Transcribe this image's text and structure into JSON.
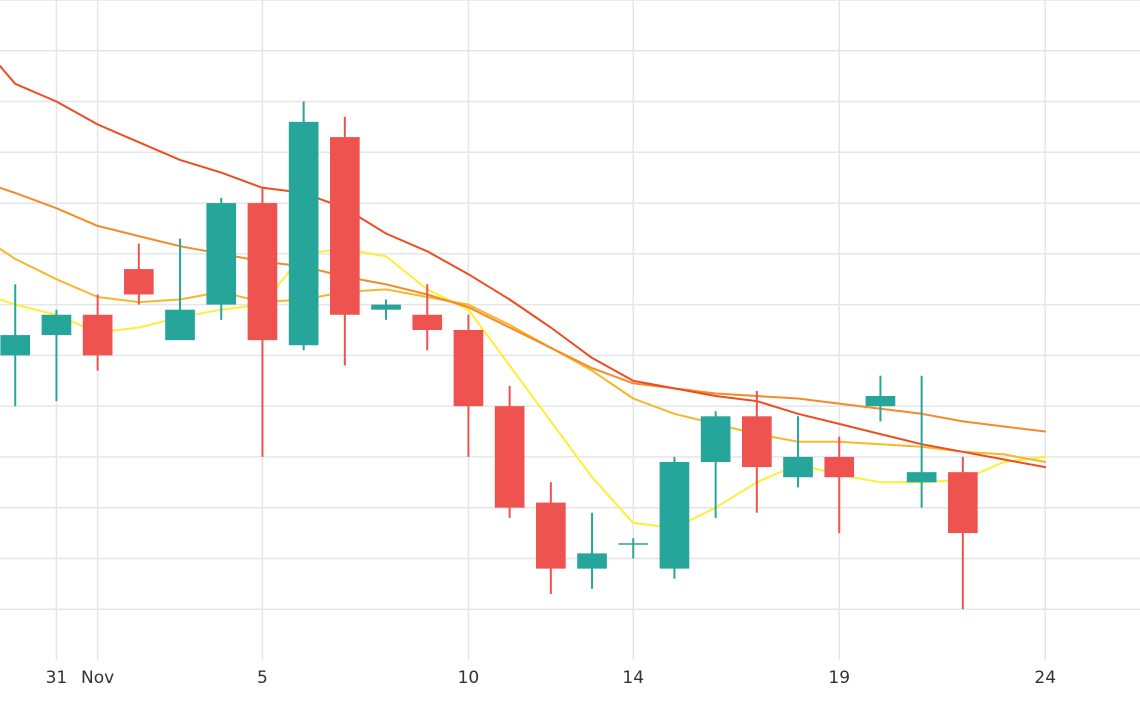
{
  "chart_data": {
    "type": "candlestick",
    "title": "",
    "xlabel": "",
    "ylabel": "",
    "x_axis": {
      "tick_labels": [
        {
          "day": 0,
          "label": "31"
        },
        {
          "day": 1,
          "label": "Nov"
        },
        {
          "day": 5,
          "label": "5"
        },
        {
          "day": 10,
          "label": "10"
        },
        {
          "day": 14,
          "label": "14"
        },
        {
          "day": 19,
          "label": "19"
        },
        {
          "day": 24,
          "label": "24"
        }
      ],
      "gridline_days": [
        0,
        1,
        5,
        10,
        14,
        19,
        24
      ],
      "visible_day_range": [
        -1.37,
        26.3
      ]
    },
    "y_axis": {
      "visible_range": [
        21,
        34
      ],
      "gridlines": [
        22,
        23,
        24,
        25,
        26,
        27,
        28,
        29,
        30,
        31,
        32,
        33,
        34
      ],
      "tick_labels_shown": false
    },
    "grid": true,
    "colors": {
      "up": "#26a69a",
      "down": "#ef5350",
      "grid": "#e6e6e6",
      "ma": [
        "#ffee33",
        "#f6b82a",
        "#f68a27",
        "#ec4e20"
      ]
    },
    "candles": [
      {
        "day": -1,
        "open": 27.0,
        "high": 28.4,
        "low": 26.0,
        "close": 27.4
      },
      {
        "day": 0,
        "open": 27.4,
        "high": 27.9,
        "low": 26.1,
        "close": 27.8
      },
      {
        "day": 1,
        "open": 27.8,
        "high": 28.2,
        "low": 26.7,
        "close": 27.0
      },
      {
        "day": 2,
        "open": 28.7,
        "high": 29.2,
        "low": 28.0,
        "close": 28.2
      },
      {
        "day": 3,
        "open": 27.3,
        "high": 29.3,
        "low": 27.3,
        "close": 27.9
      },
      {
        "day": 4,
        "open": 28.0,
        "high": 30.1,
        "low": 27.7,
        "close": 30.0
      },
      {
        "day": 5,
        "open": 30.0,
        "high": 30.3,
        "low": 25.0,
        "close": 27.3
      },
      {
        "day": 6,
        "open": 27.2,
        "high": 32.0,
        "low": 27.1,
        "close": 31.6
      },
      {
        "day": 7,
        "open": 31.3,
        "high": 31.7,
        "low": 26.8,
        "close": 27.8
      },
      {
        "day": 8,
        "open": 27.9,
        "high": 28.1,
        "low": 27.7,
        "close": 28.0
      },
      {
        "day": 9,
        "open": 27.8,
        "high": 28.4,
        "low": 27.1,
        "close": 27.5
      },
      {
        "day": 10,
        "open": 27.5,
        "high": 27.8,
        "low": 25.0,
        "close": 26.0
      },
      {
        "day": 11,
        "open": 26.0,
        "high": 26.4,
        "low": 23.8,
        "close": 24.0
      },
      {
        "day": 12,
        "open": 24.1,
        "high": 24.5,
        "low": 22.3,
        "close": 22.8
      },
      {
        "day": 13,
        "open": 22.8,
        "high": 23.9,
        "low": 22.4,
        "close": 23.1
      },
      {
        "day": 14,
        "open": 23.3,
        "high": 23.4,
        "low": 23.0,
        "close": 23.3
      },
      {
        "day": 15,
        "open": 22.8,
        "high": 25.0,
        "low": 22.6,
        "close": 24.9
      },
      {
        "day": 16,
        "open": 24.9,
        "high": 25.9,
        "low": 23.8,
        "close": 25.8
      },
      {
        "day": 17,
        "open": 25.8,
        "high": 26.3,
        "low": 23.9,
        "close": 24.8
      },
      {
        "day": 18,
        "open": 24.6,
        "high": 25.8,
        "low": 24.4,
        "close": 25.0
      },
      {
        "day": 19,
        "open": 25.0,
        "high": 25.4,
        "low": 23.5,
        "close": 24.6
      },
      {
        "day": 20,
        "open": 26.0,
        "high": 26.6,
        "low": 25.7,
        "close": 26.2
      },
      {
        "day": 21,
        "open": 24.5,
        "high": 26.6,
        "low": 24.0,
        "close": 24.7
      },
      {
        "day": 22,
        "open": 24.7,
        "high": 25.0,
        "low": 22.0,
        "close": 23.5
      }
    ],
    "moving_averages": [
      {
        "color": "#ffee33",
        "points": [
          [
            -1.37,
            28.1
          ],
          [
            -1,
            28.0
          ],
          [
            0,
            27.8
          ],
          [
            1,
            27.45
          ],
          [
            2,
            27.55
          ],
          [
            3,
            27.75
          ],
          [
            4,
            27.9
          ],
          [
            5,
            28.0
          ],
          [
            6,
            29.0
          ],
          [
            7,
            29.1
          ],
          [
            8,
            28.95
          ],
          [
            9,
            28.3
          ],
          [
            10,
            27.9
          ],
          [
            11,
            26.8
          ],
          [
            12,
            25.7
          ],
          [
            13,
            24.6
          ],
          [
            14,
            23.7
          ],
          [
            15,
            23.6
          ],
          [
            16,
            24.0
          ],
          [
            17,
            24.5
          ],
          [
            18,
            24.85
          ],
          [
            19,
            24.65
          ],
          [
            20,
            24.5
          ],
          [
            21,
            24.5
          ],
          [
            22,
            24.55
          ],
          [
            23,
            24.9
          ],
          [
            24,
            25.0
          ]
        ]
      },
      {
        "color": "#f6b82a",
        "points": [
          [
            -1.37,
            29.1
          ],
          [
            -1,
            28.9
          ],
          [
            0,
            28.5
          ],
          [
            1,
            28.15
          ],
          [
            2,
            28.05
          ],
          [
            3,
            28.1
          ],
          [
            4,
            28.25
          ],
          [
            5,
            28.05
          ],
          [
            6,
            28.1
          ],
          [
            7,
            28.25
          ],
          [
            8,
            28.3
          ],
          [
            9,
            28.15
          ],
          [
            10,
            28.0
          ],
          [
            11,
            27.6
          ],
          [
            12,
            27.15
          ],
          [
            13,
            26.7
          ],
          [
            14,
            26.15
          ],
          [
            15,
            25.85
          ],
          [
            16,
            25.65
          ],
          [
            17,
            25.45
          ],
          [
            18,
            25.3
          ],
          [
            19,
            25.3
          ],
          [
            20,
            25.25
          ],
          [
            21,
            25.2
          ],
          [
            22,
            25.1
          ],
          [
            23,
            25.05
          ],
          [
            24,
            24.9
          ]
        ]
      },
      {
        "color": "#f68a27",
        "points": [
          [
            -1.37,
            30.3
          ],
          [
            -1,
            30.2
          ],
          [
            0,
            29.9
          ],
          [
            1,
            29.55
          ],
          [
            2,
            29.35
          ],
          [
            3,
            29.15
          ],
          [
            4,
            29.0
          ],
          [
            5,
            28.85
          ],
          [
            6,
            28.75
          ],
          [
            7,
            28.55
          ],
          [
            8,
            28.4
          ],
          [
            9,
            28.2
          ],
          [
            10,
            27.95
          ],
          [
            11,
            27.55
          ],
          [
            12,
            27.15
          ],
          [
            13,
            26.75
          ],
          [
            14,
            26.45
          ],
          [
            15,
            26.35
          ],
          [
            16,
            26.25
          ],
          [
            17,
            26.2
          ],
          [
            18,
            26.15
          ],
          [
            19,
            26.05
          ],
          [
            20,
            25.95
          ],
          [
            21,
            25.85
          ],
          [
            22,
            25.7
          ],
          [
            23,
            25.6
          ],
          [
            24,
            25.5
          ]
        ]
      },
      {
        "color": "#ec4e20",
        "points": [
          [
            -1.37,
            32.7
          ],
          [
            -1,
            32.35
          ],
          [
            0,
            32.0
          ],
          [
            1,
            31.55
          ],
          [
            2,
            31.2
          ],
          [
            3,
            30.85
          ],
          [
            4,
            30.6
          ],
          [
            5,
            30.3
          ],
          [
            6,
            30.2
          ],
          [
            7,
            29.9
          ],
          [
            8,
            29.4
          ],
          [
            9,
            29.05
          ],
          [
            10,
            28.6
          ],
          [
            11,
            28.1
          ],
          [
            12,
            27.55
          ],
          [
            13,
            26.95
          ],
          [
            14,
            26.5
          ],
          [
            15,
            26.35
          ],
          [
            16,
            26.2
          ],
          [
            17,
            26.1
          ],
          [
            18,
            25.85
          ],
          [
            19,
            25.65
          ],
          [
            20,
            25.45
          ],
          [
            21,
            25.25
          ],
          [
            22,
            25.1
          ],
          [
            23,
            24.95
          ],
          [
            24,
            24.8
          ]
        ]
      }
    ]
  }
}
